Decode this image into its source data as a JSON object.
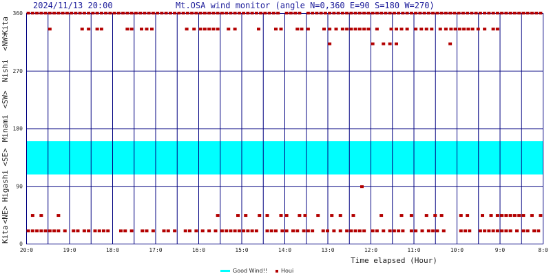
{
  "header": {
    "timestamp": "2024/11/13 20:00",
    "title": "Mt.OSA wind monitor (angle N=0,360 E=90 S=180 W=270)"
  },
  "chart_data": {
    "type": "scatter",
    "xlabel": "Time elapsed (Hour)",
    "x_ticks": [
      "20:0",
      "19:0",
      "18:0",
      "17:0",
      "16:0",
      "15:0",
      "14:0",
      "13:0",
      "12:0",
      "11:0",
      "10:0",
      "9:0",
      "8:0"
    ],
    "x_range_hours_ago": [
      0,
      12
    ],
    "ylim": [
      0,
      360
    ],
    "y_ticks": [
      0,
      90,
      180,
      270,
      360
    ],
    "y_direction_labels": [
      "Kita",
      "<NE>",
      "Higashi",
      "<SE>",
      "Minami",
      "<SW>",
      "Nishi",
      "<NW>",
      "Kita"
    ],
    "good_wind_band": [
      108,
      160
    ],
    "colors": {
      "good_wind": "#00ffff",
      "houi": "#b30000",
      "grid": "#000080"
    },
    "legend": {
      "good_wind": "Good Wind!!",
      "houi": "Houi"
    },
    "series": [
      {
        "name": "Houi",
        "points": [
          [
            0.05,
            360
          ],
          [
            0.15,
            360
          ],
          [
            0.25,
            360
          ],
          [
            0.35,
            360
          ],
          [
            0.45,
            360
          ],
          [
            0.55,
            360
          ],
          [
            0.65,
            360
          ],
          [
            0.75,
            360
          ],
          [
            0.85,
            360
          ],
          [
            0.95,
            360
          ],
          [
            1.05,
            360
          ],
          [
            1.15,
            360
          ],
          [
            1.25,
            360
          ],
          [
            1.35,
            360
          ],
          [
            1.45,
            360
          ],
          [
            1.55,
            360
          ],
          [
            1.65,
            360
          ],
          [
            1.75,
            360
          ],
          [
            1.85,
            360
          ],
          [
            1.95,
            360
          ],
          [
            2.05,
            360
          ],
          [
            2.15,
            360
          ],
          [
            2.25,
            360
          ],
          [
            2.35,
            360
          ],
          [
            2.45,
            360
          ],
          [
            2.55,
            360
          ],
          [
            2.65,
            360
          ],
          [
            2.75,
            360
          ],
          [
            2.85,
            360
          ],
          [
            2.95,
            360
          ],
          [
            3.05,
            360
          ],
          [
            3.15,
            360
          ],
          [
            3.25,
            360
          ],
          [
            3.35,
            360
          ],
          [
            3.45,
            360
          ],
          [
            3.55,
            360
          ],
          [
            3.65,
            360
          ],
          [
            3.75,
            360
          ],
          [
            3.85,
            360
          ],
          [
            3.95,
            360
          ],
          [
            4.05,
            360
          ],
          [
            4.15,
            360
          ],
          [
            4.25,
            360
          ],
          [
            4.35,
            360
          ],
          [
            4.45,
            360
          ],
          [
            4.55,
            360
          ],
          [
            4.65,
            360
          ],
          [
            4.75,
            360
          ],
          [
            4.85,
            360
          ],
          [
            4.95,
            360
          ],
          [
            5.05,
            360
          ],
          [
            5.15,
            360
          ],
          [
            5.25,
            360
          ],
          [
            5.35,
            360
          ],
          [
            5.45,
            360
          ],
          [
            5.55,
            360
          ],
          [
            5.65,
            360
          ],
          [
            5.75,
            360
          ],
          [
            5.85,
            360
          ],
          [
            6.05,
            360
          ],
          [
            6.15,
            360
          ],
          [
            6.25,
            360
          ],
          [
            6.35,
            360
          ],
          [
            6.55,
            360
          ],
          [
            6.65,
            360
          ],
          [
            6.75,
            360
          ],
          [
            6.85,
            360
          ],
          [
            6.95,
            360
          ],
          [
            7.05,
            360
          ],
          [
            7.15,
            360
          ],
          [
            7.25,
            360
          ],
          [
            7.35,
            360
          ],
          [
            7.45,
            360
          ],
          [
            7.55,
            360
          ],
          [
            7.65,
            360
          ],
          [
            7.75,
            360
          ],
          [
            7.85,
            360
          ],
          [
            7.95,
            360
          ],
          [
            8.05,
            360
          ],
          [
            8.15,
            360
          ],
          [
            8.25,
            360
          ],
          [
            8.35,
            360
          ],
          [
            8.45,
            360
          ],
          [
            8.55,
            360
          ],
          [
            8.65,
            360
          ],
          [
            8.75,
            360
          ],
          [
            8.85,
            360
          ],
          [
            8.95,
            360
          ],
          [
            9.05,
            360
          ],
          [
            9.15,
            360
          ],
          [
            9.25,
            360
          ],
          [
            9.35,
            360
          ],
          [
            9.45,
            360
          ],
          [
            9.55,
            360
          ],
          [
            9.65,
            360
          ],
          [
            9.75,
            360
          ],
          [
            9.85,
            360
          ],
          [
            9.95,
            360
          ],
          [
            10.05,
            360
          ],
          [
            10.15,
            360
          ],
          [
            10.25,
            360
          ],
          [
            10.35,
            360
          ],
          [
            10.45,
            360
          ],
          [
            10.55,
            360
          ],
          [
            10.65,
            360
          ],
          [
            10.75,
            360
          ],
          [
            10.85,
            360
          ],
          [
            10.95,
            360
          ],
          [
            11.05,
            360
          ],
          [
            11.15,
            360
          ],
          [
            11.25,
            360
          ],
          [
            11.35,
            360
          ],
          [
            11.45,
            360
          ],
          [
            11.55,
            360
          ],
          [
            11.65,
            360
          ],
          [
            11.75,
            360
          ],
          [
            11.85,
            360
          ],
          [
            11.95,
            360
          ],
          [
            0.55,
            335
          ],
          [
            1.3,
            335
          ],
          [
            1.45,
            335
          ],
          [
            1.65,
            335
          ],
          [
            1.75,
            335
          ],
          [
            2.35,
            335
          ],
          [
            2.45,
            335
          ],
          [
            2.68,
            335
          ],
          [
            2.8,
            335
          ],
          [
            2.92,
            335
          ],
          [
            3.73,
            335
          ],
          [
            3.9,
            335
          ],
          [
            4.05,
            335
          ],
          [
            4.15,
            335
          ],
          [
            4.25,
            335
          ],
          [
            4.35,
            335
          ],
          [
            4.45,
            335
          ],
          [
            4.7,
            335
          ],
          [
            4.85,
            335
          ],
          [
            5.4,
            335
          ],
          [
            5.8,
            335
          ],
          [
            5.92,
            335
          ],
          [
            6.3,
            335
          ],
          [
            6.4,
            335
          ],
          [
            6.55,
            335
          ],
          [
            6.92,
            335
          ],
          [
            7.05,
            335
          ],
          [
            7.2,
            335
          ],
          [
            7.35,
            335
          ],
          [
            7.45,
            335
          ],
          [
            7.55,
            335
          ],
          [
            7.65,
            335
          ],
          [
            7.75,
            335
          ],
          [
            7.85,
            335
          ],
          [
            7.95,
            335
          ],
          [
            8.15,
            335
          ],
          [
            8.48,
            335
          ],
          [
            8.6,
            335
          ],
          [
            8.72,
            335
          ],
          [
            8.85,
            335
          ],
          [
            9.05,
            335
          ],
          [
            9.18,
            335
          ],
          [
            9.3,
            335
          ],
          [
            9.42,
            335
          ],
          [
            9.62,
            335
          ],
          [
            9.75,
            335
          ],
          [
            9.87,
            335
          ],
          [
            9.97,
            335
          ],
          [
            10.07,
            335
          ],
          [
            10.17,
            335
          ],
          [
            10.27,
            335
          ],
          [
            10.37,
            335
          ],
          [
            10.5,
            335
          ],
          [
            10.65,
            335
          ],
          [
            10.85,
            335
          ],
          [
            10.95,
            335
          ],
          [
            7.05,
            312
          ],
          [
            8.05,
            312
          ],
          [
            8.3,
            312
          ],
          [
            8.45,
            312
          ],
          [
            8.6,
            312
          ],
          [
            9.85,
            312
          ],
          [
            7.8,
            89
          ],
          [
            0.15,
            44
          ],
          [
            0.35,
            44
          ],
          [
            0.75,
            44
          ],
          [
            4.45,
            44
          ],
          [
            4.92,
            44
          ],
          [
            5.1,
            44
          ],
          [
            5.42,
            44
          ],
          [
            5.6,
            44
          ],
          [
            5.92,
            44
          ],
          [
            6.05,
            44
          ],
          [
            6.35,
            44
          ],
          [
            6.48,
            44
          ],
          [
            6.78,
            44
          ],
          [
            7.1,
            44
          ],
          [
            7.3,
            44
          ],
          [
            7.6,
            44
          ],
          [
            8.25,
            44
          ],
          [
            8.72,
            44
          ],
          [
            8.95,
            44
          ],
          [
            9.3,
            44
          ],
          [
            9.5,
            44
          ],
          [
            9.65,
            44
          ],
          [
            10.1,
            44
          ],
          [
            10.25,
            44
          ],
          [
            10.6,
            44
          ],
          [
            10.8,
            44
          ],
          [
            10.95,
            44
          ],
          [
            11.05,
            44
          ],
          [
            11.15,
            44
          ],
          [
            11.25,
            44
          ],
          [
            11.35,
            44
          ],
          [
            11.45,
            44
          ],
          [
            11.55,
            44
          ],
          [
            11.75,
            44
          ],
          [
            11.95,
            44
          ],
          [
            0.05,
            20
          ],
          [
            0.15,
            20
          ],
          [
            0.25,
            20
          ],
          [
            0.35,
            20
          ],
          [
            0.45,
            20
          ],
          [
            0.55,
            20
          ],
          [
            0.65,
            20
          ],
          [
            0.75,
            20
          ],
          [
            0.9,
            20
          ],
          [
            1.1,
            20
          ],
          [
            1.2,
            20
          ],
          [
            1.35,
            20
          ],
          [
            1.45,
            20
          ],
          [
            1.6,
            20
          ],
          [
            1.7,
            20
          ],
          [
            1.8,
            20
          ],
          [
            1.9,
            20
          ],
          [
            2.2,
            20
          ],
          [
            2.3,
            20
          ],
          [
            2.45,
            20
          ],
          [
            2.7,
            20
          ],
          [
            2.8,
            20
          ],
          [
            2.95,
            20
          ],
          [
            3.2,
            20
          ],
          [
            3.3,
            20
          ],
          [
            3.45,
            20
          ],
          [
            3.7,
            20
          ],
          [
            3.8,
            20
          ],
          [
            3.95,
            20
          ],
          [
            4.1,
            20
          ],
          [
            4.25,
            20
          ],
          [
            4.4,
            20
          ],
          [
            4.55,
            20
          ],
          [
            4.65,
            20
          ],
          [
            4.75,
            20
          ],
          [
            4.85,
            20
          ],
          [
            4.95,
            20
          ],
          [
            5.05,
            20
          ],
          [
            5.15,
            20
          ],
          [
            5.25,
            20
          ],
          [
            5.35,
            20
          ],
          [
            5.6,
            20
          ],
          [
            5.7,
            20
          ],
          [
            5.8,
            20
          ],
          [
            5.95,
            20
          ],
          [
            6.05,
            20
          ],
          [
            6.2,
            20
          ],
          [
            6.3,
            20
          ],
          [
            6.45,
            20
          ],
          [
            6.55,
            20
          ],
          [
            6.65,
            20
          ],
          [
            6.9,
            20
          ],
          [
            7.0,
            20
          ],
          [
            7.15,
            20
          ],
          [
            7.3,
            20
          ],
          [
            7.45,
            20
          ],
          [
            7.55,
            20
          ],
          [
            7.65,
            20
          ],
          [
            7.75,
            20
          ],
          [
            7.85,
            20
          ],
          [
            8.05,
            20
          ],
          [
            8.15,
            20
          ],
          [
            8.3,
            20
          ],
          [
            8.45,
            20
          ],
          [
            8.55,
            20
          ],
          [
            8.65,
            20
          ],
          [
            8.75,
            20
          ],
          [
            8.95,
            20
          ],
          [
            9.05,
            20
          ],
          [
            9.2,
            20
          ],
          [
            9.35,
            20
          ],
          [
            9.45,
            20
          ],
          [
            9.55,
            20
          ],
          [
            9.7,
            20
          ],
          [
            10.1,
            20
          ],
          [
            10.2,
            20
          ],
          [
            10.3,
            20
          ],
          [
            10.55,
            20
          ],
          [
            10.65,
            20
          ],
          [
            10.75,
            20
          ],
          [
            10.85,
            20
          ],
          [
            10.95,
            20
          ],
          [
            11.05,
            20
          ],
          [
            11.15,
            20
          ],
          [
            11.25,
            20
          ],
          [
            11.4,
            20
          ],
          [
            11.55,
            20
          ],
          [
            11.65,
            20
          ],
          [
            11.8,
            20
          ],
          [
            11.9,
            20
          ]
        ]
      }
    ]
  }
}
